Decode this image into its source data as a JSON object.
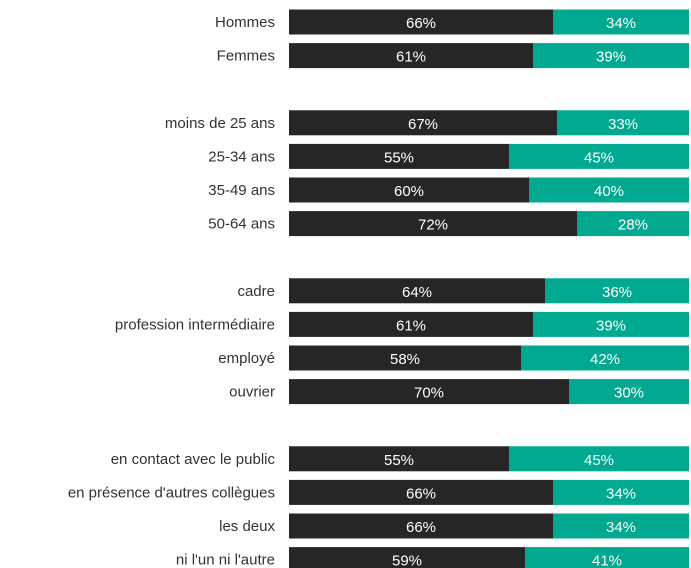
{
  "chart_data": {
    "type": "bar",
    "orientation": "horizontal",
    "stacked": true,
    "percent": true,
    "grid": false,
    "legend": "none",
    "xlim": [
      0,
      100
    ],
    "groups": [
      {
        "categories": [
          "Hommes",
          "Femmes"
        ]
      },
      {
        "categories": [
          "moins de 25 ans",
          "25-34 ans",
          "35-49 ans",
          "50-64 ans"
        ]
      },
      {
        "categories": [
          "cadre",
          "profession intermédiaire",
          "employé",
          "ouvrier"
        ]
      },
      {
        "categories": [
          "en contact avec le public",
          "en présence d'autres collègues",
          "les deux",
          "ni l'un ni l'autre"
        ]
      }
    ],
    "categories": [
      "Hommes",
      "Femmes",
      "moins de 25 ans",
      "25-34 ans",
      "35-49 ans",
      "50-64 ans",
      "cadre",
      "profession intermédiaire",
      "employé",
      "ouvrier",
      "en contact avec le public",
      "en présence d'autres collègues",
      "les deux",
      "ni l'un ni l'autre"
    ],
    "series": [
      {
        "color": "#262626",
        "values": [
          66,
          61,
          67,
          55,
          60,
          72,
          64,
          61,
          58,
          70,
          55,
          66,
          66,
          59
        ],
        "labels": [
          "66%",
          "61%",
          "67%",
          "55%",
          "60%",
          "72%",
          "64%",
          "61%",
          "58%",
          "70%",
          "55%",
          "66%",
          "66%",
          "59%"
        ]
      },
      {
        "color": "#00a98f",
        "values": [
          34,
          39,
          33,
          45,
          40,
          28,
          36,
          39,
          42,
          30,
          45,
          34,
          34,
          41
        ],
        "labels": [
          "34%",
          "39%",
          "33%",
          "45%",
          "40%",
          "28%",
          "36%",
          "39%",
          "42%",
          "30%",
          "45%",
          "34%",
          "34%",
          "41%"
        ]
      }
    ]
  }
}
